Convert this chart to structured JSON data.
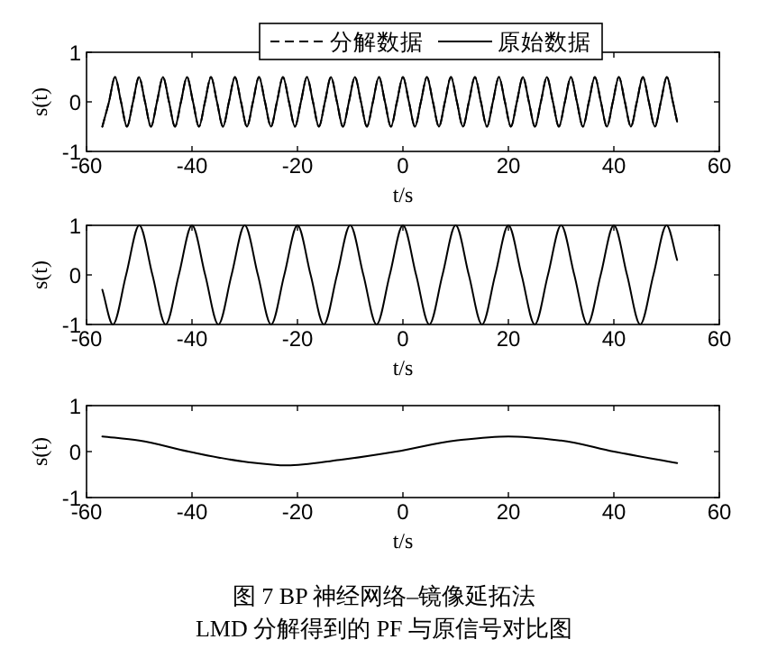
{
  "chart_data": [
    {
      "type": "line",
      "ylabel": "s(t)",
      "xlabel": "t/s",
      "xlim": [
        -60,
        60
      ],
      "xticks": [
        -60,
        -40,
        -20,
        0,
        20,
        40,
        60
      ],
      "ylim": [
        -1,
        1
      ],
      "yticks": [
        -1,
        0,
        1
      ],
      "legend": "top",
      "grid": false,
      "x": [
        -57,
        -55.74,
        -54.6,
        -53.46,
        -52.33,
        -51.19,
        -50.05,
        -48.91,
        -47.78,
        -46.64,
        -45.5,
        -44.36,
        -43.23,
        -42.09,
        -40.95,
        -39.81,
        -38.68,
        -37.54,
        -36.4,
        -35.26,
        -34.13,
        -32.99,
        -31.85,
        -30.71,
        -29.58,
        -28.44,
        -27.3,
        -26.16,
        -25.03,
        -23.89,
        -22.75,
        -21.61,
        -20.48,
        -19.34,
        -18.2,
        -17.06,
        -15.93,
        -14.79,
        -13.65,
        -12.51,
        -11.38,
        -10.24,
        -9.1,
        -7.96,
        -6.83,
        -5.69,
        -4.55,
        -3.41,
        -2.28,
        -1.14,
        0,
        1.14,
        2.28,
        3.41,
        4.55,
        5.69,
        6.83,
        7.96,
        9.1,
        10.24,
        11.38,
        12.51,
        13.65,
        14.79,
        15.93,
        17.06,
        18.2,
        19.34,
        20.48,
        21.61,
        22.75,
        23.89,
        25.03,
        26.16,
        27.3,
        28.44,
        29.58,
        30.71,
        31.85,
        32.99,
        34.13,
        35.26,
        36.4,
        37.54,
        38.68,
        39.81,
        40.95,
        42.09,
        43.23,
        44.36,
        45.5,
        46.64,
        47.78,
        48.91,
        50.05,
        51.19,
        52
      ],
      "series": [
        {
          "name": "原始数据",
          "color": "#000000",
          "line_style": "solid",
          "values": [
            -0.5,
            0,
            0.5,
            0,
            -0.5,
            0,
            0.5,
            0,
            -0.5,
            0,
            0.5,
            0,
            -0.5,
            0,
            0.5,
            0,
            -0.5,
            0,
            0.5,
            0,
            -0.5,
            0,
            0.5,
            0,
            -0.5,
            0,
            0.5,
            0,
            -0.5,
            0,
            0.5,
            0,
            -0.5,
            0,
            0.5,
            0,
            -0.5,
            0,
            0.5,
            0,
            -0.5,
            0,
            0.5,
            0,
            -0.5,
            0,
            0.5,
            0,
            -0.5,
            0,
            0.5,
            0,
            -0.5,
            0,
            0.5,
            0,
            -0.5,
            0,
            0.5,
            0,
            -0.5,
            0,
            0.5,
            0,
            -0.5,
            0,
            0.5,
            0,
            -0.5,
            0,
            0.5,
            0,
            -0.5,
            0,
            0.5,
            0,
            -0.5,
            0,
            0.5,
            0,
            -0.5,
            0,
            0.5,
            0,
            -0.5,
            0,
            0.5,
            0,
            -0.5,
            0,
            0.5,
            0,
            -0.5,
            0,
            0.5,
            0,
            -0.4
          ]
        },
        {
          "name": "分解数据",
          "color": "#000000",
          "line_style": "dashed",
          "values": [
            -0.5,
            0,
            0.5,
            0,
            -0.5,
            0,
            0.5,
            0,
            -0.5,
            0,
            0.5,
            0,
            -0.5,
            0,
            0.5,
            0,
            -0.5,
            0,
            0.5,
            0,
            -0.5,
            0,
            0.5,
            0,
            -0.5,
            0,
            0.5,
            0,
            -0.5,
            0,
            0.5,
            0,
            -0.5,
            0,
            0.5,
            0,
            -0.5,
            0,
            0.5,
            0,
            -0.5,
            0,
            0.5,
            0,
            -0.5,
            0,
            0.5,
            0,
            -0.5,
            0,
            0.5,
            0,
            -0.5,
            0,
            0.5,
            0,
            -0.5,
            0,
            0.5,
            0,
            -0.5,
            0,
            0.5,
            0,
            -0.5,
            0,
            0.5,
            0,
            -0.5,
            0,
            0.5,
            0,
            -0.5,
            0,
            0.5,
            0,
            -0.5,
            0,
            0.5,
            0,
            -0.5,
            0,
            0.5,
            0,
            -0.5,
            0,
            0.5,
            0,
            -0.5,
            0,
            0.5,
            0,
            -0.5,
            0,
            0.5,
            0,
            -0.4
          ]
        }
      ]
    },
    {
      "type": "line",
      "ylabel": "s(t)",
      "xlabel": "t/s",
      "xlim": [
        -60,
        60
      ],
      "xticks": [
        -60,
        -40,
        -20,
        0,
        20,
        40,
        60
      ],
      "ylim": [
        -1,
        1
      ],
      "yticks": [
        -1,
        0,
        1
      ],
      "grid": false,
      "x": [
        -57,
        -55,
        -52.5,
        -50,
        -47.5,
        -45,
        -42.5,
        -40,
        -37.5,
        -35,
        -32.5,
        -30,
        -27.5,
        -25,
        -22.5,
        -20,
        -17.5,
        -15,
        -12.5,
        -10,
        -7.5,
        -5,
        -2.5,
        0,
        2.5,
        5,
        7.5,
        10,
        12.5,
        15,
        17.5,
        20,
        22.5,
        25,
        27.5,
        30,
        32.5,
        35,
        37.5,
        40,
        42.5,
        45,
        47.5,
        50,
        52
      ],
      "series": [
        {
          "color": "#000000",
          "line_style": "solid",
          "values": [
            -0.3,
            -1,
            0,
            1,
            0,
            -1,
            0,
            1,
            0,
            -1,
            0,
            1,
            0,
            -1,
            0,
            1,
            0,
            -1,
            0,
            1,
            0,
            -1,
            0,
            1,
            0,
            -1,
            0,
            1,
            0,
            -1,
            0,
            1,
            0,
            -1,
            0,
            1,
            0,
            -1,
            0,
            1,
            0,
            -1,
            0,
            1,
            0.3
          ]
        }
      ]
    },
    {
      "type": "line",
      "ylabel": "s(t)",
      "xlabel": "t/s",
      "xlim": [
        -60,
        60
      ],
      "xticks": [
        -60,
        -40,
        -20,
        0,
        20,
        40,
        60
      ],
      "ylim": [
        -1,
        1
      ],
      "yticks": [
        -1,
        0,
        1
      ],
      "grid": false,
      "x": [
        -57,
        -50,
        -40.6,
        -30,
        -22,
        -12,
        -1.3,
        10,
        20,
        30,
        40,
        52
      ],
      "series": [
        {
          "color": "#000000",
          "line_style": "solid",
          "values": [
            0.33,
            0.24,
            0,
            -0.22,
            -0.3,
            -0.18,
            0,
            0.24,
            0.33,
            0.24,
            0,
            -0.25
          ]
        }
      ],
      "annotations": [
        "图 7  BP 神经网络–镜像延拓法",
        "LMD 分解得到的 PF 与原信号对比图"
      ]
    }
  ]
}
